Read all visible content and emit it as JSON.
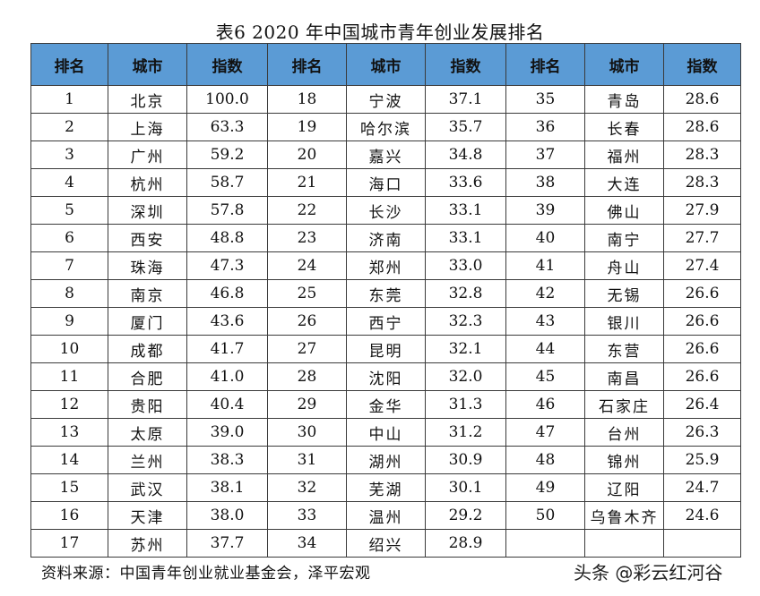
{
  "title": "表6  2020 年中国城市青年创业发展排名",
  "headers": [
    "排名",
    "城市",
    "指数",
    "排名",
    "城市",
    "指数",
    "排名",
    "城市",
    "指数"
  ],
  "rows": [
    [
      [
        "1",
        "北京",
        "100.0"
      ],
      [
        "18",
        "宁波",
        "37.1"
      ],
      [
        "35",
        "青岛",
        "28.6"
      ]
    ],
    [
      [
        "2",
        "上海",
        "63.3"
      ],
      [
        "19",
        "哈尔滨",
        "35.7"
      ],
      [
        "36",
        "长春",
        "28.6"
      ]
    ],
    [
      [
        "3",
        "广州",
        "59.2"
      ],
      [
        "20",
        "嘉兴",
        "34.8"
      ],
      [
        "37",
        "福州",
        "28.3"
      ]
    ],
    [
      [
        "4",
        "杭州",
        "58.7"
      ],
      [
        "21",
        "海口",
        "33.6"
      ],
      [
        "38",
        "大连",
        "28.3"
      ]
    ],
    [
      [
        "5",
        "深圳",
        "57.8"
      ],
      [
        "22",
        "长沙",
        "33.1"
      ],
      [
        "39",
        "佛山",
        "27.9"
      ]
    ],
    [
      [
        "6",
        "西安",
        "48.8"
      ],
      [
        "23",
        "济南",
        "33.1"
      ],
      [
        "40",
        "南宁",
        "27.7"
      ]
    ],
    [
      [
        "7",
        "珠海",
        "47.3"
      ],
      [
        "24",
        "郑州",
        "33.0"
      ],
      [
        "41",
        "舟山",
        "27.4"
      ]
    ],
    [
      [
        "8",
        "南京",
        "46.8"
      ],
      [
        "25",
        "东莞",
        "32.8"
      ],
      [
        "42",
        "无锡",
        "26.6"
      ]
    ],
    [
      [
        "9",
        "厦门",
        "43.6"
      ],
      [
        "26",
        "西宁",
        "32.3"
      ],
      [
        "43",
        "银川",
        "26.6"
      ]
    ],
    [
      [
        "10",
        "成都",
        "41.7"
      ],
      [
        "27",
        "昆明",
        "32.1"
      ],
      [
        "44",
        "东营",
        "26.6"
      ]
    ],
    [
      [
        "11",
        "合肥",
        "41.0"
      ],
      [
        "28",
        "沈阳",
        "32.0"
      ],
      [
        "45",
        "南昌",
        "26.6"
      ]
    ],
    [
      [
        "12",
        "贵阳",
        "40.4"
      ],
      [
        "29",
        "金华",
        "31.3"
      ],
      [
        "46",
        "石家庄",
        "26.4"
      ]
    ],
    [
      [
        "13",
        "太原",
        "39.0"
      ],
      [
        "30",
        "中山",
        "31.2"
      ],
      [
        "47",
        "台州",
        "26.3"
      ]
    ],
    [
      [
        "14",
        "兰州",
        "38.3"
      ],
      [
        "31",
        "湖州",
        "30.9"
      ],
      [
        "48",
        "锦州",
        "25.9"
      ]
    ],
    [
      [
        "15",
        "武汉",
        "38.1"
      ],
      [
        "32",
        "芜湖",
        "30.1"
      ],
      [
        "49",
        "辽阳",
        "24.7"
      ]
    ],
    [
      [
        "16",
        "天津",
        "38.0"
      ],
      [
        "33",
        "温州",
        "29.2"
      ],
      [
        "50",
        "乌鲁木齐",
        "24.6"
      ]
    ],
    [
      [
        "17",
        "苏州",
        "37.7"
      ],
      [
        "34",
        "绍兴",
        "28.9"
      ],
      [
        "",
        "",
        ""
      ]
    ]
  ],
  "source": "资料来源：中国青年创业就业基金会，泽平宏观",
  "watermark": "头条 @彩云红河谷",
  "colors": {
    "header_bg": "#5b9bd5",
    "border": "#3a3a3a"
  }
}
